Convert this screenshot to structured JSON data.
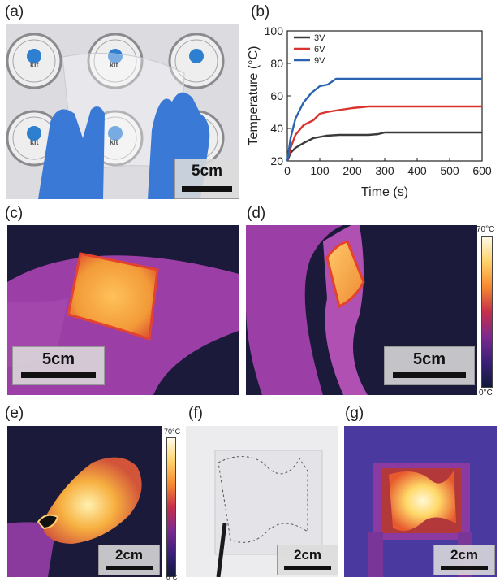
{
  "panels": {
    "a": {
      "label": "(a)",
      "scale": "5cm",
      "logo_text": "kit"
    },
    "b": {
      "label": "(b)"
    },
    "c": {
      "label": "(c)",
      "scale": "5cm"
    },
    "d": {
      "label": "(d)",
      "scale": "5cm",
      "cbar_max": "70°C",
      "cbar_min": "0°C"
    },
    "e": {
      "label": "(e)",
      "scale": "2cm",
      "cbar_max": "70°C",
      "cbar_min": "0°C"
    },
    "f": {
      "label": "(f)",
      "scale": "2cm"
    },
    "g": {
      "label": "(g)",
      "scale": "2cm"
    }
  },
  "colors": {
    "thermal_bg": "#1b1a3a",
    "thermal_arm": "#a03ea8",
    "hot": "#f7a93a",
    "blue_glove": "#3a7ad6"
  },
  "chart_data": {
    "type": "line",
    "title": "",
    "xlabel": "Time (s)",
    "ylabel": "Temperature (°C)",
    "xlim": [
      0,
      600
    ],
    "ylim": [
      20,
      100
    ],
    "xticks": [
      0,
      100,
      200,
      300,
      400,
      500,
      600
    ],
    "yticks": [
      20,
      40,
      60,
      80,
      100
    ],
    "legend_position": "top-left",
    "series": [
      {
        "name": "3V",
        "color": "#3b3b3b",
        "x": [
          0,
          10,
          25,
          50,
          80,
          120,
          160,
          200,
          250,
          280,
          300,
          400,
          500,
          600
        ],
        "y": [
          20,
          25,
          28,
          31,
          34,
          35.5,
          36,
          36,
          36,
          36.5,
          37.5,
          37.5,
          37.5,
          37.5
        ]
      },
      {
        "name": "6V",
        "color": "#d9342b",
        "x": [
          0,
          10,
          25,
          50,
          80,
          100,
          120,
          150,
          200,
          250,
          300,
          400,
          500,
          600
        ],
        "y": [
          20,
          28,
          36,
          42,
          45,
          49,
          50,
          51,
          52.5,
          53.5,
          53.5,
          53.5,
          53.5,
          53.5
        ]
      },
      {
        "name": "9V",
        "color": "#2a63b0",
        "x": [
          0,
          10,
          25,
          50,
          75,
          100,
          125,
          150,
          200,
          300,
          400,
          500,
          600
        ],
        "y": [
          20,
          34,
          46,
          56,
          62,
          66,
          67,
          70.5,
          70.5,
          70.5,
          70.5,
          70.5,
          70.5
        ]
      }
    ]
  }
}
